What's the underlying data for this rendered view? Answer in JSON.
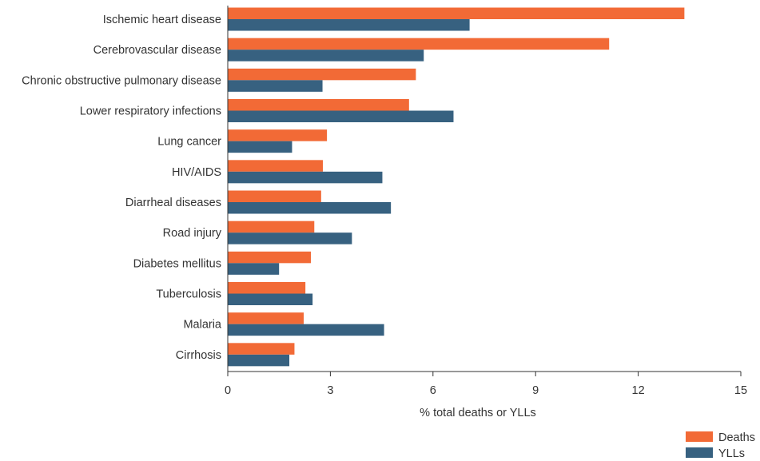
{
  "chart_data": {
    "type": "bar",
    "orientation": "horizontal",
    "categories": [
      "Ischemic heart disease",
      "Cerebrovascular disease",
      "Chronic obstructive pulmonary disease",
      "Lower respiratory infections",
      "Lung cancer",
      "HIV/AIDS",
      "Diarrheal diseases",
      "Road injury",
      "Diabetes mellitus",
      "Tuberculosis",
      "Malaria",
      "Cirrhosis"
    ],
    "series": [
      {
        "name": "Deaths",
        "color": "#f26a36",
        "values": [
          13.35,
          11.15,
          5.5,
          5.3,
          2.9,
          2.78,
          2.73,
          2.53,
          2.43,
          2.27,
          2.22,
          1.95
        ]
      },
      {
        "name": "YLLs",
        "color": "#376180",
        "values": [
          7.07,
          5.73,
          2.77,
          6.6,
          1.88,
          4.52,
          4.77,
          3.63,
          1.5,
          2.48,
          4.57,
          1.8
        ]
      }
    ],
    "xlabel": "% total deaths or YLLs",
    "xlim": [
      0,
      15
    ],
    "xticks": [
      0,
      3,
      6,
      9,
      12,
      15
    ],
    "legend": "bottom-right",
    "grid": false
  }
}
